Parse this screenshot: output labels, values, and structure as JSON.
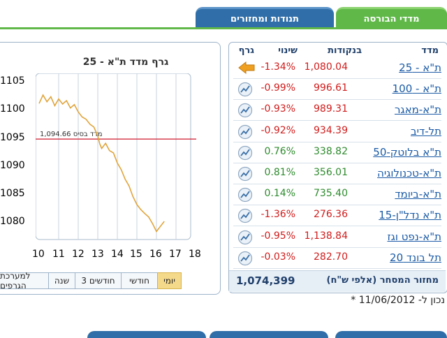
{
  "tabs": [
    {
      "label": "מדדי הבורסה"
    },
    {
      "label": "תנודות ומחזורים"
    }
  ],
  "graph": {
    "title": "גרף מדד ת\"א - 25",
    "base_label": "1,094.66 מדד בסיס"
  },
  "chart_data": {
    "type": "line",
    "title": "גרף מדד ת\"א - 25",
    "x_ticks": [
      "10",
      "11",
      "12",
      "13",
      "14",
      "15",
      "16",
      "17",
      "18"
    ],
    "y_ticks": [
      "1105",
      "1100",
      "1095",
      "1090",
      "1085",
      "1080"
    ],
    "xlim": [
      10,
      18
    ],
    "ylim": [
      1077,
      1106
    ],
    "base_value": 1094.66,
    "series": [
      {
        "x": [
          10.0,
          10.2,
          10.4,
          10.6,
          10.8,
          11.0,
          11.2,
          11.4,
          11.6,
          11.8,
          12.0,
          12.2,
          12.4,
          12.6,
          12.8,
          13.0,
          13.1,
          13.2,
          13.4,
          13.6,
          13.8,
          14.0,
          14.2,
          14.4,
          14.6,
          14.8,
          15.0,
          15.2,
          15.4,
          15.6,
          15.8,
          16.0,
          16.2,
          16.4
        ],
        "y": [
          1101.0,
          1102.5,
          1101.3,
          1102.2,
          1100.6,
          1101.8,
          1100.9,
          1101.5,
          1100.2,
          1100.8,
          1099.5,
          1098.6,
          1098.2,
          1097.3,
          1096.8,
          1095.2,
          1093.8,
          1093.0,
          1093.9,
          1092.6,
          1092.2,
          1090.4,
          1089.2,
          1087.5,
          1086.3,
          1084.4,
          1083.0,
          1082.1,
          1081.4,
          1080.8,
          1079.6,
          1078.2,
          1079.1,
          1080.0
        ]
      }
    ]
  },
  "periods": [
    "יומי",
    "חודשי",
    "3 חודשים",
    "שנה",
    "למערכת הגרפים"
  ],
  "table": {
    "headers": {
      "index": "מדד",
      "points": "בנקודות",
      "change": "שינוי",
      "graph": "גרף"
    },
    "rows": [
      {
        "name": "ת\"א - 25",
        "points": "1,080.04",
        "change": "-1.34%",
        "sign": "neg",
        "icon": "arrow-icon"
      },
      {
        "name": "ת\"א - 100",
        "points": "996.61",
        "change": "-0.99%",
        "sign": "neg",
        "icon": "mini-chart-icon"
      },
      {
        "name": "ת\"א-מאגר",
        "points": "989.31",
        "change": "-0.93%",
        "sign": "neg",
        "icon": "mini-chart-icon"
      },
      {
        "name": "תל-דיב",
        "points": "934.39",
        "change": "-0.92%",
        "sign": "neg",
        "icon": "mini-chart-icon"
      },
      {
        "name": "ת\"א בלוטק-50",
        "points": "338.82",
        "change": "0.76%",
        "sign": "pos",
        "icon": "mini-chart-icon"
      },
      {
        "name": "ת\"א-טכנולוגיה",
        "points": "356.01",
        "change": "0.81%",
        "sign": "pos",
        "icon": "mini-chart-icon"
      },
      {
        "name": "ת\"א-ביומד",
        "points": "735.40",
        "change": "0.14%",
        "sign": "pos",
        "icon": "mini-chart-icon"
      },
      {
        "name": "ת\"א נדל\"ן-15",
        "points": "276.36",
        "change": "-1.36%",
        "sign": "neg",
        "icon": "mini-chart-icon"
      },
      {
        "name": "ת\"א-נפט וגז",
        "points": "1,138.84",
        "change": "-0.95%",
        "sign": "neg",
        "icon": "mini-chart-icon"
      },
      {
        "name": "תל בונד 20",
        "points": "282.70",
        "change": "-0.03%",
        "sign": "neg",
        "icon": "mini-chart-icon"
      }
    ],
    "turnover_label": "מחזור המסחר (אלפי ש\"ח)",
    "turnover_value": "1,074,399"
  },
  "updated": "* נכון ל- 11/06/2012"
}
